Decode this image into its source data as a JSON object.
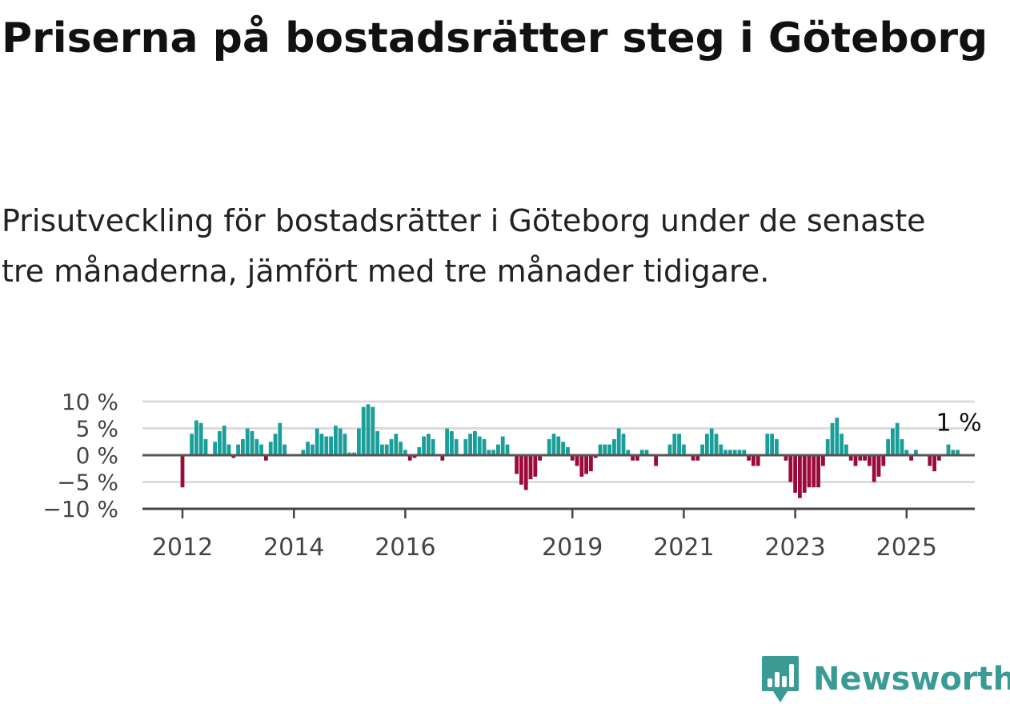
{
  "title": "Priserna på bostadsrätter steg i Göteborg",
  "subtitle": "Prisutveckling för bostadsrätter i Göteborg under de senaste tre månaderna, jämfört med tre månader tidigare.",
  "brand": {
    "name": "Newsworthy",
    "color": "#3a9a94"
  },
  "chart_data": {
    "type": "bar",
    "xlabel": "",
    "ylabel": "",
    "ylim": [
      -10,
      10
    ],
    "y_ticks": [
      10,
      5,
      0,
      -5,
      -10
    ],
    "y_tick_labels": [
      "10 %",
      "5 %",
      "0 %",
      "−5 %",
      "−10 %"
    ],
    "x_ticks": [
      2012,
      2014,
      2016,
      2019,
      2021,
      2023,
      2025
    ],
    "start": "2012-01",
    "grid": true,
    "positive_color": "#1a9e99",
    "negative_color": "#9c0a3a",
    "end_label": "1 %",
    "values": [
      -6,
      0,
      4,
      6.5,
      6,
      3,
      0,
      2.5,
      4.5,
      5.5,
      2,
      -0.5,
      2,
      3,
      5,
      4.5,
      3,
      2,
      -1,
      2.5,
      4,
      6,
      2,
      0,
      0,
      0,
      1,
      2.5,
      2,
      5,
      4,
      3.5,
      3.5,
      5.5,
      5,
      4,
      0.5,
      0.5,
      5,
      9,
      9.5,
      9,
      4.5,
      2,
      2,
      3,
      4,
      2.5,
      1,
      -1,
      -0.5,
      1.5,
      3.5,
      4,
      3,
      0,
      -1,
      5,
      4.5,
      3,
      0,
      3,
      4,
      4.5,
      3.5,
      3,
      1,
      1,
      2,
      3.5,
      2,
      0,
      -3.5,
      -5.5,
      -6.5,
      -4.5,
      -4,
      -1,
      0,
      3,
      4,
      3.5,
      2.5,
      1.5,
      -1,
      -2,
      -4,
      -3.5,
      -3,
      -0.5,
      2,
      2,
      2,
      3,
      5,
      4,
      1,
      -1,
      -1,
      1,
      1,
      0,
      -2,
      0,
      0,
      2,
      4,
      4,
      2,
      0,
      -1,
      -1,
      2,
      4,
      5,
      4,
      2,
      1,
      1,
      1,
      1,
      1,
      -1,
      -2,
      -2,
      0,
      4,
      4,
      3,
      0,
      -1,
      -5,
      -7,
      -8,
      -7,
      -6,
      -6,
      -6,
      -2,
      3,
      6,
      7,
      4,
      2,
      -1,
      -2,
      -1,
      -1,
      -2,
      -5,
      -4,
      -2,
      3,
      5,
      6,
      3,
      1,
      -1,
      1,
      0,
      0,
      -2,
      -3,
      -1,
      0,
      2,
      1,
      1
    ]
  }
}
